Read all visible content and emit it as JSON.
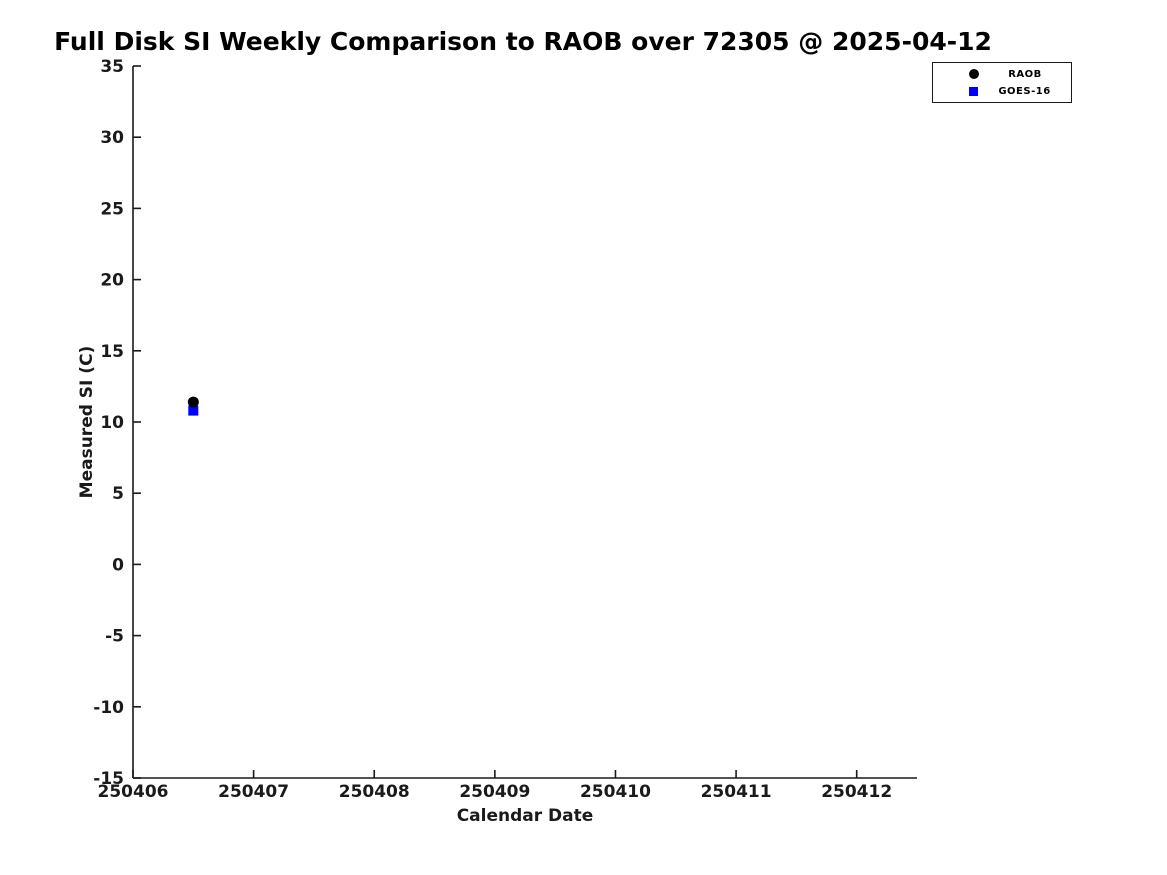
{
  "figure": {
    "background": "#ffffff",
    "axis_color": "#1a1a1a",
    "title_color": "#000000"
  },
  "chart_data": {
    "type": "scatter",
    "title": "Full Disk SI Weekly Comparison to RAOB over 72305 @ 2025-04-12",
    "xlabel": "Calendar Date",
    "ylabel": "Measured SI (C)",
    "xlim": [
      250406,
      250412.5
    ],
    "ylim": [
      -15,
      35
    ],
    "x_ticks": [
      250406,
      250407,
      250408,
      250409,
      250410,
      250411,
      250412
    ],
    "y_ticks": [
      -15,
      -10,
      -5,
      0,
      5,
      10,
      15,
      20,
      25,
      30,
      35
    ],
    "grid": false,
    "legend_position": "upper-right",
    "series": [
      {
        "name": "RAOB",
        "marker": "circle",
        "color": "#000000",
        "x": [
          250406.5
        ],
        "y": [
          11.4
        ]
      },
      {
        "name": "GOES-16",
        "marker": "square",
        "color": "#0000ff",
        "x": [
          250406.5
        ],
        "y": [
          10.8
        ]
      }
    ]
  }
}
